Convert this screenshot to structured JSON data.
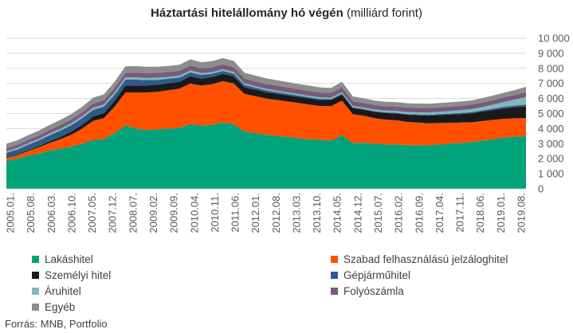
{
  "title_bold": "Háztartási hitelállomány hó végén",
  "title_unit": "(milliárd forint)",
  "source": "Forrás: MNB, Portfolio",
  "chart_data": {
    "type": "area",
    "stacked": true,
    "ylim": [
      0,
      10000
    ],
    "yticks": [
      "0",
      "1 000",
      "2 000",
      "3 000",
      "4 000",
      "5 000",
      "6 000",
      "7 000",
      "8 000",
      "9 000",
      "10 000"
    ],
    "x_tick_labels": [
      "2005.01.",
      "2005.08.",
      "2006.03.",
      "2006.10.",
      "2007.05.",
      "2007.12.",
      "2008.07.",
      "2009.02.",
      "2009.09.",
      "2010.04.",
      "2010.11.",
      "2011.06.",
      "2012.01.",
      "2012.08.",
      "2013.03.",
      "2013.10.",
      "2014.05.",
      "2014.12.",
      "2015.07.",
      "2016.02.",
      "2016.09.",
      "2017.04.",
      "2017.11.",
      "2018.06.",
      "2019.01.",
      "2019.08."
    ],
    "grid": true,
    "legend_position": "bottom",
    "series": [
      {
        "name": "Lakáshitel",
        "color": "#00a37a",
        "values": [
          1850,
          2000,
          2200,
          2350,
          2550,
          2650,
          2800,
          3000,
          3250,
          3300,
          3700,
          4200,
          4000,
          3900,
          3950,
          4000,
          4050,
          4300,
          4200,
          4250,
          4400,
          4300,
          3800,
          3700,
          3600,
          3500,
          3450,
          3350,
          3300,
          3250,
          3200,
          3550,
          3050,
          3050,
          3000,
          2950,
          2950,
          2900,
          2900,
          2900,
          2950,
          3000,
          3050,
          3100,
          3200,
          3300,
          3400,
          3450,
          3500
        ]
      },
      {
        "name": "Szabad felhasználású jelzáloghitel",
        "color": "#ff5000",
        "values": [
          200,
          230,
          300,
          400,
          500,
          650,
          800,
          1000,
          1250,
          1400,
          1750,
          2200,
          2400,
          2500,
          2500,
          2550,
          2600,
          2700,
          2650,
          2700,
          2750,
          2700,
          2500,
          2450,
          2400,
          2400,
          2350,
          2350,
          2300,
          2250,
          2300,
          2300,
          1900,
          1800,
          1700,
          1650,
          1600,
          1550,
          1500,
          1450,
          1420,
          1380,
          1350,
          1320,
          1300,
          1280,
          1250,
          1230,
          1200
        ]
      },
      {
        "name": "Személyi hitel",
        "color": "#1a1a1a",
        "values": [
          40,
          50,
          60,
          80,
          110,
          150,
          200,
          250,
          300,
          330,
          380,
          450,
          470,
          470,
          470,
          460,
          460,
          480,
          470,
          470,
          480,
          470,
          440,
          430,
          420,
          410,
          410,
          400,
          400,
          400,
          400,
          410,
          400,
          400,
          410,
          430,
          450,
          470,
          490,
          510,
          530,
          550,
          570,
          600,
          630,
          660,
          700,
          740,
          780
        ]
      },
      {
        "name": "Gépjárműhitel",
        "color": "#2e5a88",
        "values": [
          300,
          330,
          360,
          380,
          400,
          420,
          430,
          440,
          440,
          430,
          420,
          400,
          380,
          350,
          320,
          300,
          280,
          260,
          240,
          220,
          200,
          180,
          160,
          140,
          120,
          110,
          100,
          90,
          80,
          70,
          60,
          60,
          55,
          50,
          50,
          50,
          50,
          50,
          50,
          55,
          60,
          65,
          70,
          75,
          80,
          90,
          100,
          110,
          120
        ]
      },
      {
        "name": "Áruhitel",
        "color": "#7fb8c0",
        "values": [
          100,
          100,
          110,
          110,
          120,
          120,
          130,
          130,
          140,
          140,
          150,
          150,
          150,
          140,
          140,
          130,
          130,
          120,
          120,
          110,
          110,
          110,
          100,
          100,
          100,
          100,
          100,
          100,
          100,
          100,
          100,
          100,
          100,
          100,
          110,
          110,
          120,
          130,
          140,
          150,
          160,
          170,
          180,
          200,
          230,
          270,
          320,
          400,
          500
        ]
      },
      {
        "name": "Folyószámla",
        "color": "#7a5a7a",
        "values": [
          200,
          210,
          220,
          230,
          240,
          250,
          260,
          270,
          280,
          290,
          300,
          310,
          320,
          320,
          320,
          320,
          320,
          320,
          320,
          320,
          320,
          320,
          320,
          320,
          320,
          320,
          320,
          320,
          320,
          320,
          310,
          310,
          310,
          300,
          300,
          300,
          300,
          300,
          300,
          300,
          300,
          300,
          300,
          300,
          300,
          300,
          310,
          310,
          320
        ]
      },
      {
        "name": "Egyéb",
        "color": "#8c8c8c",
        "values": [
          300,
          300,
          310,
          320,
          330,
          340,
          350,
          360,
          380,
          380,
          400,
          430,
          430,
          420,
          410,
          400,
          400,
          420,
          410,
          410,
          420,
          410,
          390,
          380,
          380,
          370,
          360,
          350,
          350,
          340,
          330,
          380,
          320,
          310,
          300,
          290,
          290,
          280,
          280,
          280,
          280,
          280,
          280,
          280,
          290,
          300,
          310,
          320,
          350
        ]
      }
    ]
  }
}
